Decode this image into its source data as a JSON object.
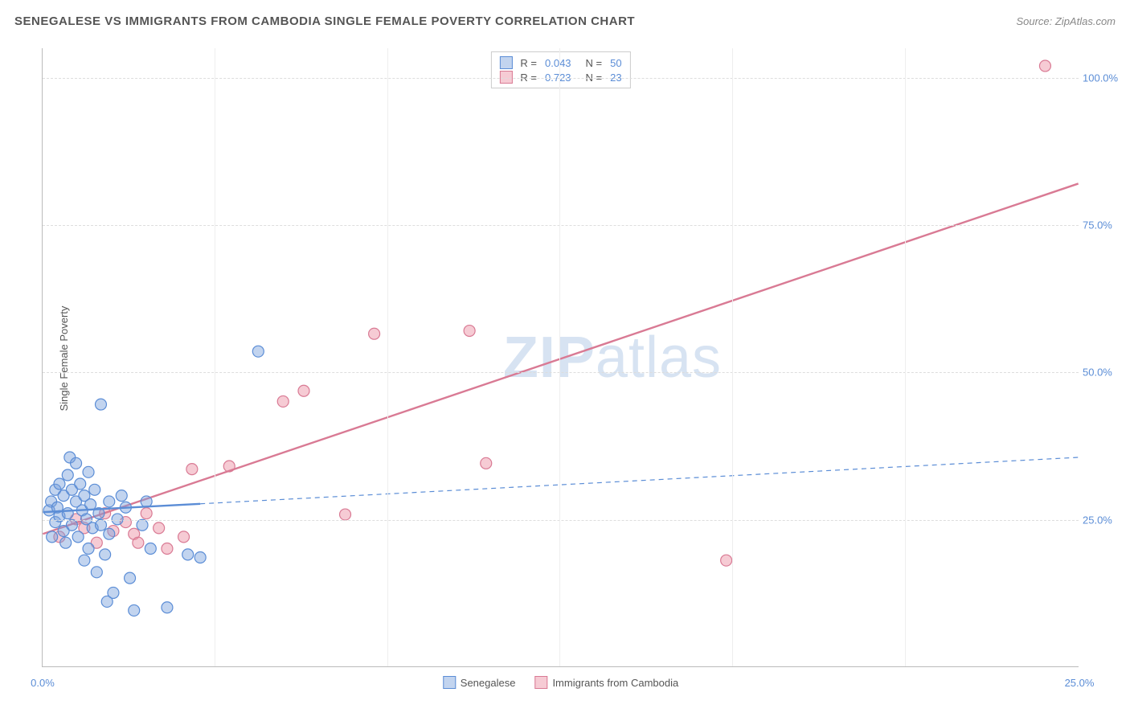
{
  "header": {
    "title": "SENEGALESE VS IMMIGRANTS FROM CAMBODIA SINGLE FEMALE POVERTY CORRELATION CHART",
    "source": "Source: ZipAtlas.com"
  },
  "yaxis": {
    "title": "Single Female Poverty"
  },
  "watermark": {
    "zip": "ZIP",
    "atlas": "atlas"
  },
  "chart": {
    "type": "scatter",
    "xlim": [
      0,
      25
    ],
    "ylim": [
      0,
      105
    ],
    "xticks": [
      0,
      25
    ],
    "yticks": [
      25,
      50,
      75,
      100
    ],
    "vgrid": [
      4.15,
      8.31,
      12.47,
      16.63,
      20.79
    ],
    "grid_color": "#dddddd",
    "background_color": "#ffffff",
    "axis_label_color": "#5b8dd6",
    "series": {
      "senegalese": {
        "label": "Senegalese",
        "fill": "rgba(120,160,220,0.45)",
        "stroke": "#5b8dd6",
        "R": "0.043",
        "N": "50",
        "trend": {
          "x1": 0,
          "y1": 26.2,
          "x2": 25,
          "y2": 35.5,
          "solid_until_x": 3.8
        },
        "points": [
          [
            0.15,
            26.5
          ],
          [
            0.2,
            28
          ],
          [
            0.22,
            22
          ],
          [
            0.3,
            30
          ],
          [
            0.3,
            24.5
          ],
          [
            0.35,
            27
          ],
          [
            0.4,
            31
          ],
          [
            0.4,
            25.5
          ],
          [
            0.5,
            29
          ],
          [
            0.5,
            23
          ],
          [
            0.55,
            21
          ],
          [
            0.6,
            32.5
          ],
          [
            0.6,
            26
          ],
          [
            0.65,
            35.5
          ],
          [
            0.7,
            30
          ],
          [
            0.7,
            24
          ],
          [
            0.8,
            34.5
          ],
          [
            0.8,
            28
          ],
          [
            0.85,
            22
          ],
          [
            0.9,
            31
          ],
          [
            0.95,
            26.5
          ],
          [
            1.0,
            18
          ],
          [
            1.0,
            29
          ],
          [
            1.05,
            25
          ],
          [
            1.1,
            33
          ],
          [
            1.1,
            20
          ],
          [
            1.15,
            27.5
          ],
          [
            1.2,
            23.5
          ],
          [
            1.25,
            30
          ],
          [
            1.3,
            16
          ],
          [
            1.35,
            26
          ],
          [
            1.4,
            44.5
          ],
          [
            1.4,
            24
          ],
          [
            1.5,
            19
          ],
          [
            1.55,
            11
          ],
          [
            1.6,
            28
          ],
          [
            1.6,
            22.5
          ],
          [
            1.7,
            12.5
          ],
          [
            1.8,
            25
          ],
          [
            1.9,
            29
          ],
          [
            2.0,
            27
          ],
          [
            2.1,
            15
          ],
          [
            2.2,
            9.5
          ],
          [
            2.4,
            24
          ],
          [
            2.5,
            28
          ],
          [
            2.6,
            20
          ],
          [
            3.0,
            10
          ],
          [
            3.5,
            19
          ],
          [
            3.8,
            18.5
          ],
          [
            5.2,
            53.5
          ]
        ]
      },
      "cambodia": {
        "label": "Immigrants from Cambodia",
        "fill": "rgba(235,140,160,0.45)",
        "stroke": "#d97a94",
        "R": "0.723",
        "N": "23",
        "trend": {
          "x1": 0,
          "y1": 22.5,
          "x2": 25,
          "y2": 82,
          "solid_until_x": 25
        },
        "points": [
          [
            0.4,
            22
          ],
          [
            0.8,
            25
          ],
          [
            1.0,
            23.5
          ],
          [
            1.3,
            21
          ],
          [
            1.5,
            26
          ],
          [
            1.7,
            23
          ],
          [
            2.0,
            24.5
          ],
          [
            2.2,
            22.5
          ],
          [
            2.3,
            21
          ],
          [
            2.5,
            26
          ],
          [
            2.8,
            23.5
          ],
          [
            3.0,
            20
          ],
          [
            3.4,
            22
          ],
          [
            3.6,
            33.5
          ],
          [
            4.5,
            34
          ],
          [
            5.8,
            45
          ],
          [
            6.3,
            46.8
          ],
          [
            7.3,
            25.8
          ],
          [
            8.0,
            56.5
          ],
          [
            10.3,
            57
          ],
          [
            10.7,
            34.5
          ],
          [
            16.5,
            18
          ],
          [
            24.2,
            102
          ]
        ]
      }
    },
    "marker_radius": 7,
    "marker_stroke_width": 1.2,
    "trend_width_solid": 2.4,
    "trend_width_dashed": 1.2
  },
  "xtick_labels": {
    "0": "0.0%",
    "25": "25.0%"
  },
  "ytick_labels": {
    "25": "25.0%",
    "50": "50.0%",
    "75": "75.0%",
    "100": "100.0%"
  }
}
